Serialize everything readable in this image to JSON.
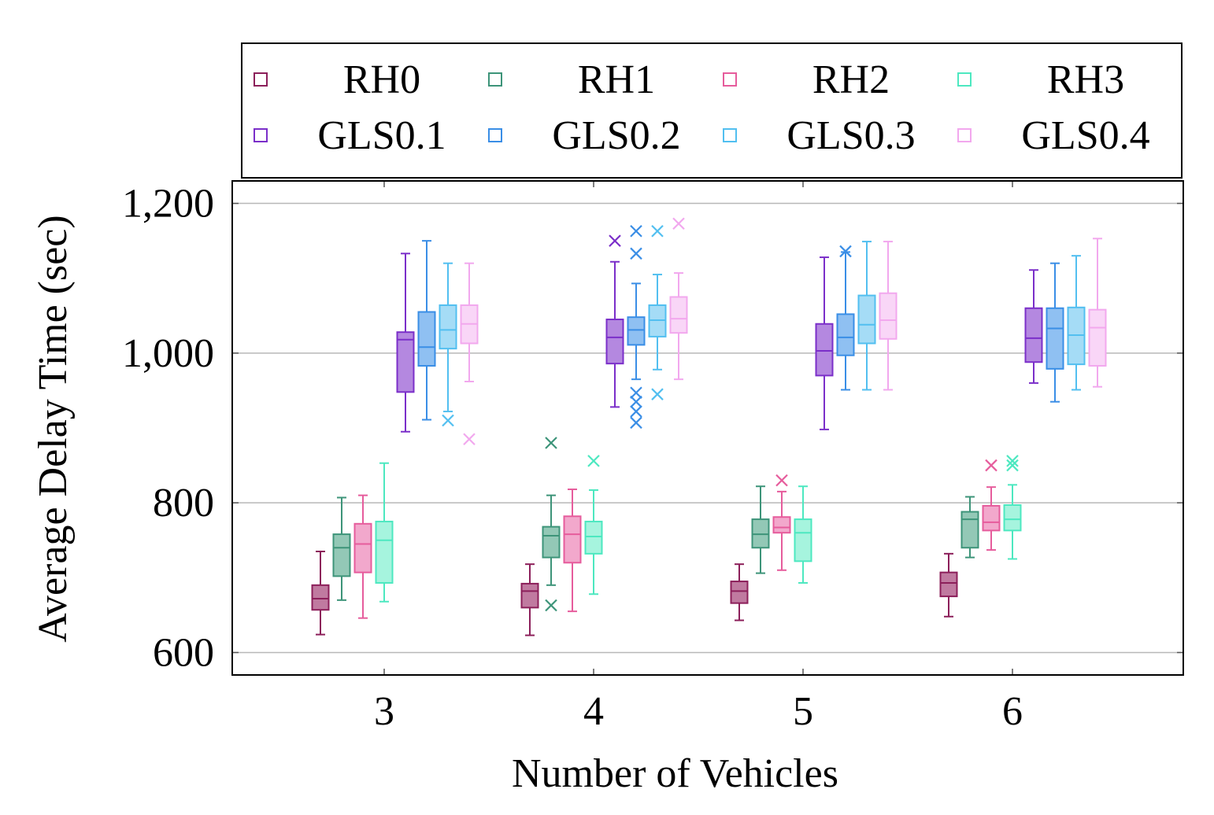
{
  "chart_data": {
    "type": "boxplot",
    "title": "",
    "xlabel": "Number of Vehicles",
    "ylabel": "Average Delay Time (sec)",
    "categories": [
      "3",
      "4",
      "5",
      "6"
    ],
    "ylim": [
      570,
      1230
    ],
    "yticks": [
      600,
      800,
      1000,
      1200
    ],
    "ytick_labels": [
      "600",
      "800",
      "1,000",
      "1,200"
    ],
    "grid": true,
    "legend_position": "top",
    "series": [
      {
        "name": "RH0",
        "color": "#8c1f5a",
        "fill": "#c07aa0",
        "boxes": [
          {
            "category": "3",
            "min": 624,
            "q1": 657,
            "median": 672,
            "q3": 690,
            "max": 735,
            "outliers": []
          },
          {
            "category": "4",
            "min": 623,
            "q1": 660,
            "median": 682,
            "q3": 692,
            "max": 718,
            "outliers": []
          },
          {
            "category": "5",
            "min": 643,
            "q1": 666,
            "median": 682,
            "q3": 695,
            "max": 718,
            "outliers": []
          },
          {
            "category": "6",
            "min": 648,
            "q1": 675,
            "median": 693,
            "q3": 707,
            "max": 732,
            "outliers": []
          }
        ]
      },
      {
        "name": "RH1",
        "color": "#3d9479",
        "fill": "#93c8b6",
        "boxes": [
          {
            "category": "3",
            "min": 670,
            "q1": 702,
            "median": 740,
            "q3": 758,
            "max": 807,
            "outliers": []
          },
          {
            "category": "4",
            "min": 690,
            "q1": 727,
            "median": 756,
            "q3": 768,
            "max": 810,
            "outliers": [
              663,
              880
            ]
          },
          {
            "category": "5",
            "min": 706,
            "q1": 740,
            "median": 758,
            "q3": 778,
            "max": 822,
            "outliers": []
          },
          {
            "category": "6",
            "min": 727,
            "q1": 740,
            "median": 778,
            "q3": 788,
            "max": 808,
            "outliers": []
          }
        ]
      },
      {
        "name": "RH2",
        "color": "#e65c9c",
        "fill": "#f2a8cc",
        "boxes": [
          {
            "category": "3",
            "min": 646,
            "q1": 707,
            "median": 745,
            "q3": 772,
            "max": 810,
            "outliers": []
          },
          {
            "category": "4",
            "min": 655,
            "q1": 720,
            "median": 758,
            "q3": 782,
            "max": 818,
            "outliers": []
          },
          {
            "category": "5",
            "min": 710,
            "q1": 760,
            "median": 767,
            "q3": 781,
            "max": 815,
            "outliers": [
              830
            ]
          },
          {
            "category": "6",
            "min": 737,
            "q1": 763,
            "median": 774,
            "q3": 796,
            "max": 821,
            "outliers": [
              850
            ]
          }
        ]
      },
      {
        "name": "RH3",
        "color": "#4de8c0",
        "fill": "#a6f4de",
        "boxes": [
          {
            "category": "3",
            "min": 668,
            "q1": 693,
            "median": 750,
            "q3": 775,
            "max": 853,
            "outliers": []
          },
          {
            "category": "4",
            "min": 678,
            "q1": 732,
            "median": 755,
            "q3": 775,
            "max": 817,
            "outliers": [
              856
            ]
          },
          {
            "category": "5",
            "min": 693,
            "q1": 722,
            "median": 760,
            "q3": 778,
            "max": 822,
            "outliers": []
          },
          {
            "category": "6",
            "min": 725,
            "q1": 763,
            "median": 778,
            "q3": 797,
            "max": 824,
            "outliers": [
              850,
              856
            ]
          }
        ]
      },
      {
        "name": "GLS0.1",
        "color": "#7b2fc9",
        "fill": "#b488e0",
        "boxes": [
          {
            "category": "3",
            "min": 895,
            "q1": 948,
            "median": 1018,
            "q3": 1028,
            "max": 1133,
            "outliers": []
          },
          {
            "category": "4",
            "min": 928,
            "q1": 986,
            "median": 1021,
            "q3": 1045,
            "max": 1122,
            "outliers": [
              1150
            ]
          },
          {
            "category": "5",
            "min": 898,
            "q1": 970,
            "median": 1003,
            "q3": 1039,
            "max": 1128,
            "outliers": []
          },
          {
            "category": "6",
            "min": 960,
            "q1": 988,
            "median": 1020,
            "q3": 1060,
            "max": 1111,
            "outliers": []
          }
        ]
      },
      {
        "name": "GLS0.2",
        "color": "#3a8ee6",
        "fill": "#8fc0f2",
        "boxes": [
          {
            "category": "3",
            "min": 911,
            "q1": 983,
            "median": 1008,
            "q3": 1055,
            "max": 1150,
            "outliers": []
          },
          {
            "category": "4",
            "min": 965,
            "q1": 1011,
            "median": 1031,
            "q3": 1048,
            "max": 1093,
            "outliers": [
              907,
              922,
              935,
              947,
              1133,
              1163
            ]
          },
          {
            "category": "5",
            "min": 951,
            "q1": 997,
            "median": 1021,
            "q3": 1052,
            "max": 1135,
            "outliers": [
              1136
            ]
          },
          {
            "category": "6",
            "min": 935,
            "q1": 979,
            "median": 1033,
            "q3": 1060,
            "max": 1120,
            "outliers": []
          }
        ]
      },
      {
        "name": "GLS0.3",
        "color": "#52bff0",
        "fill": "#a5dcf6",
        "boxes": [
          {
            "category": "3",
            "min": 922,
            "q1": 1006,
            "median": 1031,
            "q3": 1064,
            "max": 1120,
            "outliers": [
              910
            ]
          },
          {
            "category": "4",
            "min": 978,
            "q1": 1022,
            "median": 1044,
            "q3": 1064,
            "max": 1105,
            "outliers": [
              945,
              1163
            ]
          },
          {
            "category": "5",
            "min": 951,
            "q1": 1013,
            "median": 1038,
            "q3": 1077,
            "max": 1149,
            "outliers": []
          },
          {
            "category": "6",
            "min": 951,
            "q1": 985,
            "median": 1024,
            "q3": 1061,
            "max": 1130,
            "outliers": []
          }
        ]
      },
      {
        "name": "GLS0.4",
        "color": "#f2a8ee",
        "fill": "#f9d6f7",
        "boxes": [
          {
            "category": "3",
            "min": 962,
            "q1": 1013,
            "median": 1039,
            "q3": 1064,
            "max": 1120,
            "outliers": [
              885
            ]
          },
          {
            "category": "4",
            "min": 965,
            "q1": 1027,
            "median": 1046,
            "q3": 1075,
            "max": 1107,
            "outliers": [
              1173
            ]
          },
          {
            "category": "5",
            "min": 951,
            "q1": 1019,
            "median": 1044,
            "q3": 1080,
            "max": 1149,
            "outliers": []
          },
          {
            "category": "6",
            "min": 955,
            "q1": 983,
            "median": 1034,
            "q3": 1058,
            "max": 1153,
            "outliers": []
          }
        ]
      }
    ]
  }
}
